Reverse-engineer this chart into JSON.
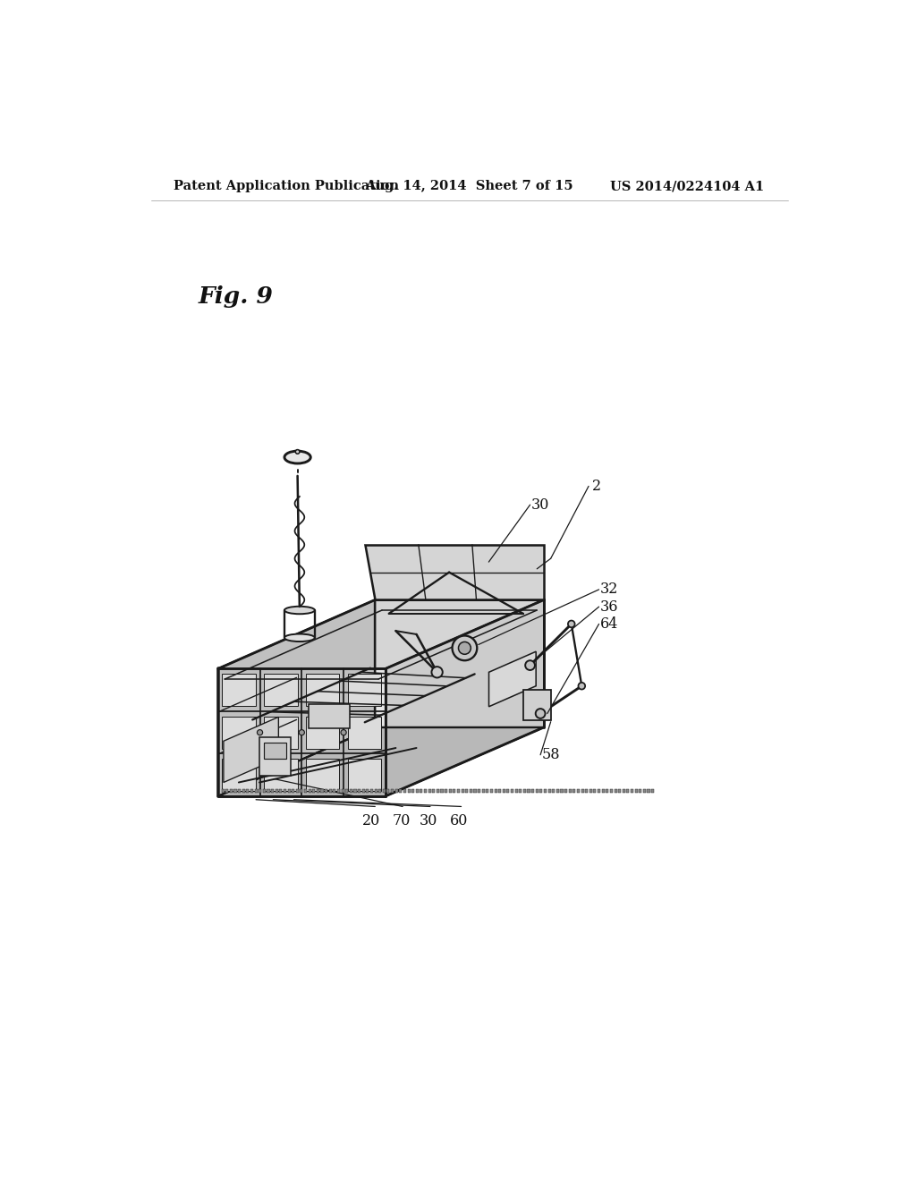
{
  "background_color": "#ffffff",
  "header_left": "Patent Application Publication",
  "header_center": "Aug. 14, 2014  Sheet 7 of 15",
  "header_right": "US 2014/0224104 A1",
  "fig_label": "Fig. 9",
  "header_fontsize": 10.5,
  "fig_label_fontsize": 19,
  "line_color": "#1a1a1a",
  "line_width": 1.4,
  "label_fontsize": 11.5
}
